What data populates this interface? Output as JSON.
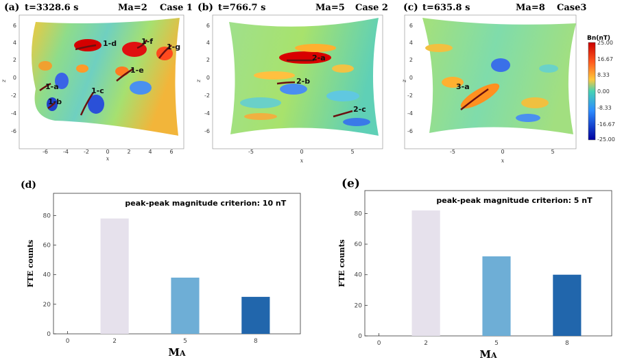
{
  "maps": [
    {
      "panel": "(a)",
      "time": "t=3328.6 s",
      "mach": "Ma=2",
      "case": "Case 1",
      "xticks": [
        "-6",
        "-4",
        "-2",
        "0",
        "2",
        "4",
        "6"
      ],
      "yticks": [
        "6",
        "4",
        "2",
        "0",
        "-2",
        "-4",
        "-6"
      ],
      "xlabel": "x",
      "ylabel": "z",
      "ftes": [
        "1-a",
        "1-b",
        "1-c",
        "1-d",
        "1-e",
        "1-f",
        "1-g"
      ]
    },
    {
      "panel": "(b)",
      "time": "t=766.7 s",
      "mach": "Ma=5",
      "case": "Case 2",
      "xticks": [
        "-5",
        "0",
        "5"
      ],
      "yticks": [
        "6",
        "4",
        "2",
        "0",
        "-2",
        "-4",
        "-6"
      ],
      "xlabel": "x",
      "ylabel": "z",
      "ftes": [
        "2-a",
        "2-b",
        "2-c"
      ]
    },
    {
      "panel": "(c)",
      "time": "t=635.8 s",
      "mach": "Ma=8",
      "case": "Case3",
      "xticks": [
        "-5",
        "0",
        "5"
      ],
      "yticks": [
        "6",
        "4",
        "2",
        "0",
        "-2",
        "-4",
        "-6"
      ],
      "xlabel": "x",
      "ylabel": "z",
      "ftes": [
        "3-a"
      ]
    }
  ],
  "colorbar": {
    "title": "Bn(nT)",
    "ticks": [
      "25.00",
      "16.67",
      "8.33",
      "0.00",
      "-8.33",
      "-16.67",
      "-25.00"
    ],
    "colors": [
      "#cc0000",
      "#ff5a1e",
      "#ffc83c",
      "#46d2b4",
      "#2d8cff",
      "#0000a0"
    ]
  },
  "chart_data": [
    {
      "type": "bar",
      "panel": "(d)",
      "annotation": "peak-peak magnitude criterion: 10 nT",
      "categories": [
        "2",
        "5",
        "8"
      ],
      "values": [
        78,
        38,
        25
      ],
      "colors": [
        "#e6e1ec",
        "#6eaed6",
        "#2166ac"
      ],
      "xticks": [
        "0",
        "2",
        "5",
        "8"
      ],
      "yticks": [
        "0",
        "20",
        "40",
        "60",
        "80"
      ],
      "ylim": [
        0,
        95
      ],
      "xlabel": "MA",
      "ylabel": "FTE counts"
    },
    {
      "type": "bar",
      "panel": "(e)",
      "annotation": "peak-peak magnitude criterion: 5 nT",
      "categories": [
        "2",
        "5",
        "8"
      ],
      "values": [
        82,
        52,
        40
      ],
      "colors": [
        "#e6e1ec",
        "#6eaed6",
        "#2166ac"
      ],
      "xticks": [
        "0",
        "2",
        "5",
        "8"
      ],
      "yticks": [
        "0",
        "20",
        "40",
        "60",
        "80"
      ],
      "ylim": [
        0,
        95
      ],
      "xlabel": "MA",
      "ylabel": "FTE counts"
    }
  ]
}
